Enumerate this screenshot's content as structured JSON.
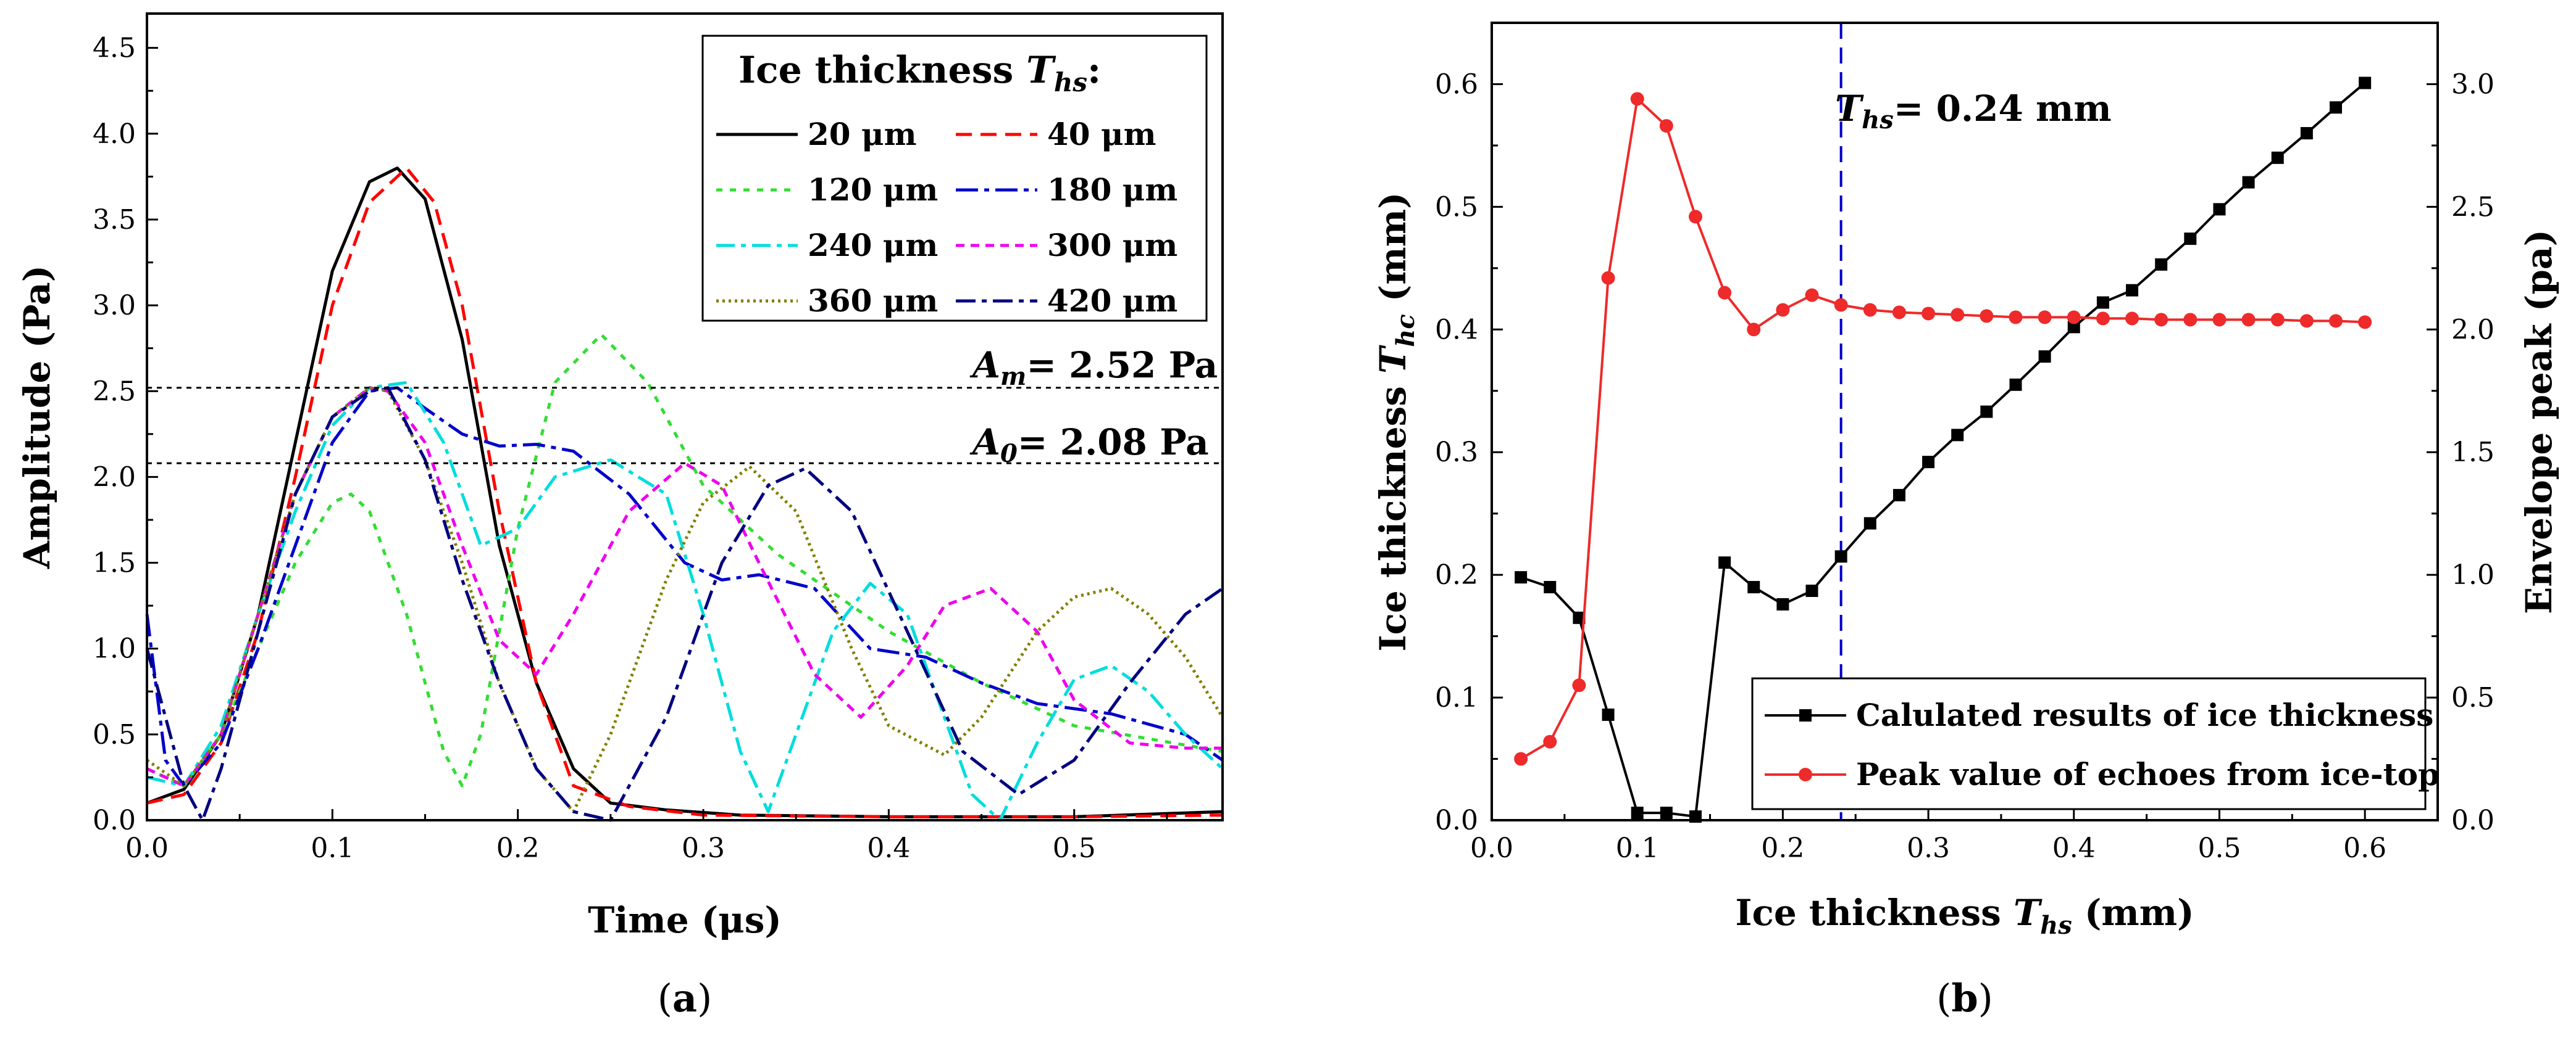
{
  "chart_data": [
    {
      "type": "line",
      "xlabel": "Time (μs)",
      "ylabel": "Amplitude (Pa)",
      "xlim": [
        0,
        0.58
      ],
      "ylim": [
        0,
        4.7
      ],
      "xticks": [
        "0.0",
        "0.1",
        "0.2",
        "0.3",
        "0.4",
        "0.5"
      ],
      "yticks": [
        "0.0",
        "0.5",
        "1.0",
        "1.5",
        "2.0",
        "2.5",
        "3.0",
        "3.5",
        "4.0",
        "4.5"
      ],
      "legend_title_main": "Ice thickness ",
      "legend_title_sym": "T",
      "legend_title_sub": "hs",
      "legend_title_end": ":",
      "ref_lines": [
        {
          "sym": "A",
          "sub": "m",
          "text": "= 2.52 Pa",
          "value": 2.52
        },
        {
          "sym": "A",
          "sub": "0",
          "text": "= 2.08 Pa",
          "value": 2.08
        }
      ],
      "panel_label": "a",
      "series": [
        {
          "name": "20 μm",
          "color": "#000000",
          "dash": "",
          "x": [
            0,
            0.02,
            0.04,
            0.06,
            0.08,
            0.1,
            0.12,
            0.135,
            0.15,
            0.17,
            0.19,
            0.21,
            0.23,
            0.25,
            0.28,
            0.32,
            0.4,
            0.5,
            0.58
          ],
          "y": [
            0.1,
            0.18,
            0.5,
            1.2,
            2.2,
            3.2,
            3.72,
            3.8,
            3.62,
            2.8,
            1.6,
            0.8,
            0.3,
            0.1,
            0.06,
            0.03,
            0.02,
            0.02,
            0.05
          ]
        },
        {
          "name": "40 μm",
          "color": "#ff0000",
          "dash": "26,14",
          "x": [
            0,
            0.02,
            0.04,
            0.06,
            0.08,
            0.1,
            0.12,
            0.14,
            0.155,
            0.17,
            0.19,
            0.21,
            0.23,
            0.26,
            0.3,
            0.4,
            0.5,
            0.58
          ],
          "y": [
            0.1,
            0.15,
            0.45,
            1.1,
            2.0,
            3.0,
            3.6,
            3.8,
            3.6,
            3.0,
            1.8,
            0.8,
            0.2,
            0.08,
            0.03,
            0.02,
            0.02,
            0.03
          ]
        },
        {
          "name": "120 μm",
          "color": "#33dd33",
          "dash": "10,12",
          "x": [
            0,
            0.02,
            0.04,
            0.06,
            0.08,
            0.1,
            0.11,
            0.12,
            0.14,
            0.16,
            0.17,
            0.18,
            0.2,
            0.22,
            0.245,
            0.27,
            0.3,
            0.34,
            0.4,
            0.45,
            0.5,
            0.58
          ],
          "y": [
            0.3,
            0.2,
            0.5,
            1.0,
            1.5,
            1.85,
            1.9,
            1.8,
            1.2,
            0.4,
            0.2,
            0.5,
            1.7,
            2.55,
            2.83,
            2.55,
            1.95,
            1.55,
            1.1,
            0.8,
            0.55,
            0.4
          ]
        },
        {
          "name": "180 μm",
          "color": "#0000cc",
          "dash": "36,10,8,10",
          "x": [
            0,
            0.01,
            0.02,
            0.04,
            0.06,
            0.08,
            0.1,
            0.12,
            0.135,
            0.15,
            0.17,
            0.19,
            0.21,
            0.23,
            0.26,
            0.29,
            0.31,
            0.33,
            0.36,
            0.39,
            0.42,
            0.45,
            0.48,
            0.52,
            0.56,
            0.58
          ],
          "y": [
            1.2,
            0.35,
            0.2,
            0.45,
            1.0,
            1.6,
            2.2,
            2.5,
            2.52,
            2.4,
            2.25,
            2.18,
            2.19,
            2.15,
            1.9,
            1.5,
            1.4,
            1.43,
            1.35,
            1.0,
            0.95,
            0.8,
            0.68,
            0.62,
            0.5,
            0.35
          ]
        },
        {
          "name": "240 μm",
          "color": "#00dddd",
          "dash": "30,10,8,10",
          "x": [
            0,
            0.02,
            0.04,
            0.06,
            0.08,
            0.1,
            0.12,
            0.14,
            0.16,
            0.18,
            0.2,
            0.22,
            0.25,
            0.28,
            0.3,
            0.32,
            0.335,
            0.35,
            0.37,
            0.39,
            0.41,
            0.43,
            0.445,
            0.46,
            0.48,
            0.5,
            0.52,
            0.54,
            0.56,
            0.58
          ],
          "y": [
            0.25,
            0.2,
            0.55,
            1.2,
            1.8,
            2.3,
            2.52,
            2.55,
            2.2,
            1.6,
            1.7,
            2.0,
            2.1,
            1.9,
            1.2,
            0.4,
            0.05,
            0.5,
            1.1,
            1.38,
            1.2,
            0.6,
            0.15,
            0.0,
            0.45,
            0.82,
            0.9,
            0.75,
            0.5,
            0.3
          ]
        },
        {
          "name": "300 μm",
          "color": "#ee00ee",
          "dash": "14,10",
          "x": [
            0,
            0.02,
            0.04,
            0.06,
            0.08,
            0.1,
            0.12,
            0.13,
            0.15,
            0.17,
            0.19,
            0.21,
            0.23,
            0.26,
            0.29,
            0.31,
            0.33,
            0.36,
            0.385,
            0.41,
            0.43,
            0.455,
            0.48,
            0.5,
            0.53,
            0.56,
            0.58
          ],
          "y": [
            0.3,
            0.2,
            0.5,
            1.2,
            1.9,
            2.35,
            2.52,
            2.5,
            2.2,
            1.6,
            1.05,
            0.85,
            1.2,
            1.8,
            2.08,
            1.95,
            1.5,
            0.85,
            0.6,
            0.9,
            1.25,
            1.35,
            1.1,
            0.7,
            0.45,
            0.42,
            0.42
          ]
        },
        {
          "name": "360 μm",
          "color": "#808000",
          "dash": "4,6",
          "x": [
            0,
            0.02,
            0.04,
            0.06,
            0.08,
            0.1,
            0.12,
            0.13,
            0.15,
            0.17,
            0.19,
            0.21,
            0.23,
            0.25,
            0.28,
            0.3,
            0.325,
            0.35,
            0.38,
            0.4,
            0.43,
            0.45,
            0.48,
            0.5,
            0.52,
            0.54,
            0.56,
            0.58
          ],
          "y": [
            0.35,
            0.2,
            0.5,
            1.2,
            1.9,
            2.35,
            2.52,
            2.5,
            2.1,
            1.5,
            0.8,
            0.3,
            0.05,
            0.5,
            1.4,
            1.85,
            2.06,
            1.8,
            1.0,
            0.55,
            0.38,
            0.6,
            1.1,
            1.3,
            1.35,
            1.2,
            0.95,
            0.6
          ]
        },
        {
          "name": "420 μm",
          "color": "#000080",
          "dash": "32,10,8,10",
          "x": [
            0,
            0.01,
            0.02,
            0.03,
            0.04,
            0.06,
            0.08,
            0.1,
            0.12,
            0.13,
            0.15,
            0.17,
            0.19,
            0.21,
            0.23,
            0.25,
            0.28,
            0.31,
            0.335,
            0.355,
            0.38,
            0.41,
            0.44,
            0.47,
            0.5,
            0.53,
            0.56,
            0.58
          ],
          "y": [
            1.0,
            0.6,
            0.2,
            0.0,
            0.3,
            1.1,
            1.9,
            2.35,
            2.5,
            2.52,
            2.1,
            1.4,
            0.8,
            0.3,
            0.05,
            0.0,
            0.6,
            1.5,
            1.95,
            2.05,
            1.8,
            1.1,
            0.4,
            0.15,
            0.35,
            0.8,
            1.2,
            1.35
          ]
        }
      ]
    },
    {
      "type": "line",
      "xlabel_main": "Ice thickness ",
      "xlabel_sym": "T",
      "xlabel_sub": "hs",
      "xlabel_end": " (mm)",
      "ylabel_main": "Ice thickness ",
      "ylabel_sym": "T",
      "ylabel_sub": "hc",
      "ylabel_end": " (mm)",
      "y2label": "Envelope peak (pa)",
      "xlim": [
        0,
        0.65
      ],
      "ylim": [
        0,
        0.65
      ],
      "y2lim": [
        0,
        3.25
      ],
      "xticks": [
        "0.0",
        "0.1",
        "0.2",
        "0.3",
        "0.4",
        "0.5",
        "0.6"
      ],
      "yticks": [
        "0.0",
        "0.1",
        "0.2",
        "0.3",
        "0.4",
        "0.5",
        "0.6"
      ],
      "y2ticks": [
        "0.0",
        "0.5",
        "1.0",
        "1.5",
        "2.0",
        "2.5",
        "3.0"
      ],
      "vline": {
        "value": 0.24,
        "sym": "T",
        "sub": "hs",
        "text": "= 0.24 mm",
        "color": "#0000cc"
      },
      "panel_label": "b",
      "x": [
        0.02,
        0.04,
        0.06,
        0.08,
        0.1,
        0.12,
        0.14,
        0.16,
        0.18,
        0.2,
        0.22,
        0.24,
        0.26,
        0.28,
        0.3,
        0.32,
        0.34,
        0.36,
        0.38,
        0.4,
        0.42,
        0.44,
        0.46,
        0.48,
        0.5,
        0.52,
        0.54,
        0.56,
        0.58,
        0.6
      ],
      "series": [
        {
          "name": "Calulated results of ice thickness",
          "color": "#000000",
          "marker": "square",
          "axis": "left",
          "values": [
            0.198,
            0.19,
            0.165,
            0.086,
            0.006,
            0.006,
            0.003,
            0.21,
            0.19,
            0.176,
            0.187,
            0.215,
            0.242,
            0.265,
            0.292,
            0.314,
            0.333,
            0.355,
            0.378,
            0.402,
            0.422,
            0.432,
            0.453,
            0.474,
            0.498,
            0.52,
            0.54,
            0.56,
            0.581,
            0.601
          ]
        },
        {
          "name": "Peak value of echoes from ice-top",
          "color": "#ee2a2a",
          "marker": "circle",
          "axis": "right",
          "values": [
            0.25,
            0.32,
            0.55,
            2.21,
            2.94,
            2.83,
            2.46,
            2.15,
            2.0,
            2.08,
            2.14,
            2.1,
            2.08,
            2.07,
            2.065,
            2.06,
            2.055,
            2.05,
            2.05,
            2.05,
            2.045,
            2.045,
            2.04,
            2.04,
            2.04,
            2.04,
            2.04,
            2.035,
            2.035,
            2.03
          ]
        }
      ]
    }
  ]
}
